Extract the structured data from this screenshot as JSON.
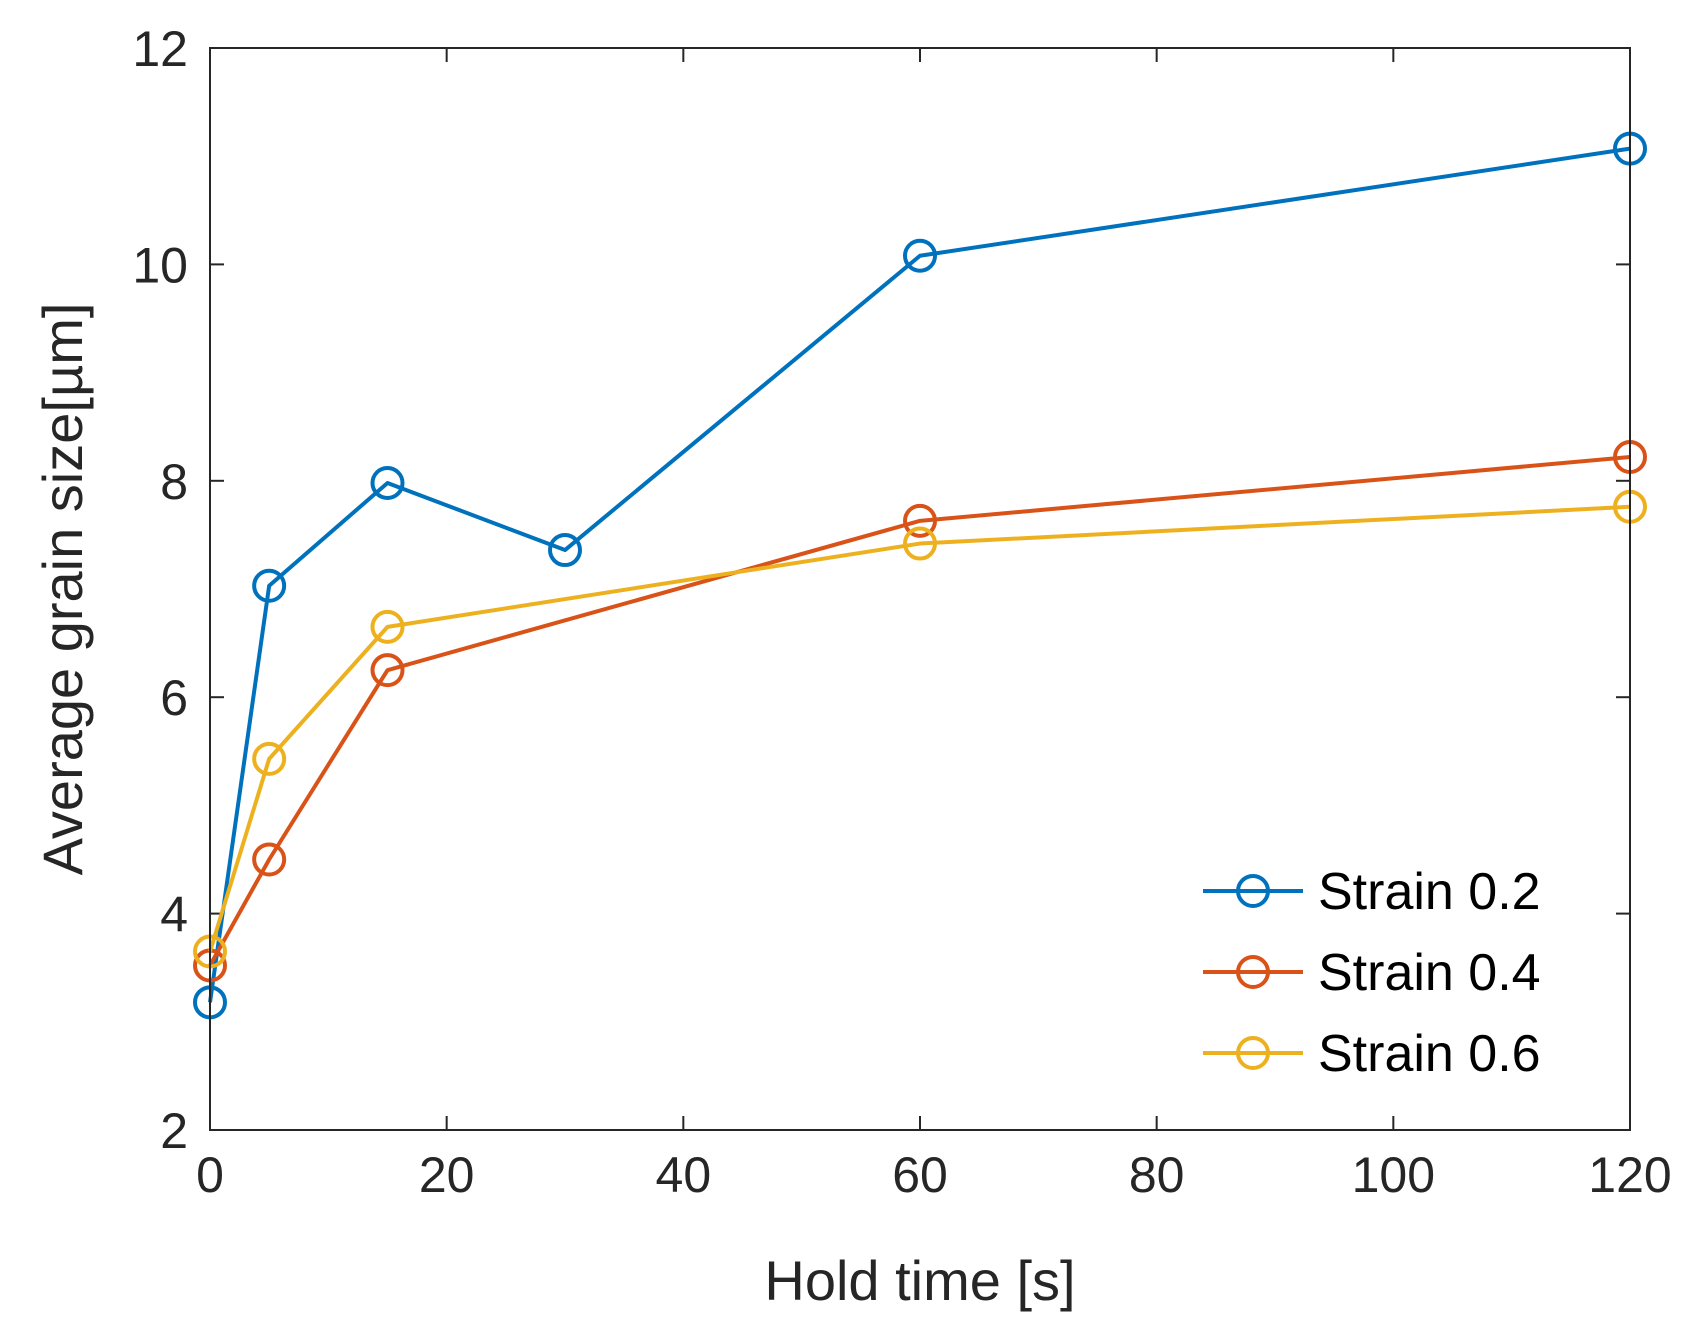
{
  "chart_data": {
    "type": "line",
    "title": "",
    "xlabel": "Hold time [s]",
    "ylabel": "Average grain size[µm]",
    "xlim": [
      0,
      120
    ],
    "ylim": [
      2,
      12
    ],
    "xticks": [
      0,
      20,
      40,
      60,
      80,
      100,
      120
    ],
    "yticks": [
      2,
      4,
      6,
      8,
      10,
      12
    ],
    "grid": false,
    "legend_position": "bottom-right",
    "marker": "open-circle",
    "series": [
      {
        "name": "Strain 0.2",
        "color": "#0072BD",
        "x": [
          0,
          5,
          15,
          30,
          60,
          120
        ],
        "y": [
          3.18,
          7.03,
          7.98,
          7.36,
          10.08,
          11.07
        ]
      },
      {
        "name": "Strain 0.4",
        "color": "#D95319",
        "x": [
          0,
          5,
          15,
          60,
          120
        ],
        "y": [
          3.52,
          4.5,
          6.25,
          7.63,
          8.22
        ]
      },
      {
        "name": "Strain 0.6",
        "color": "#EDB120",
        "x": [
          0,
          5,
          15,
          60,
          120
        ],
        "y": [
          3.65,
          5.43,
          6.65,
          7.42,
          7.76
        ]
      }
    ]
  }
}
